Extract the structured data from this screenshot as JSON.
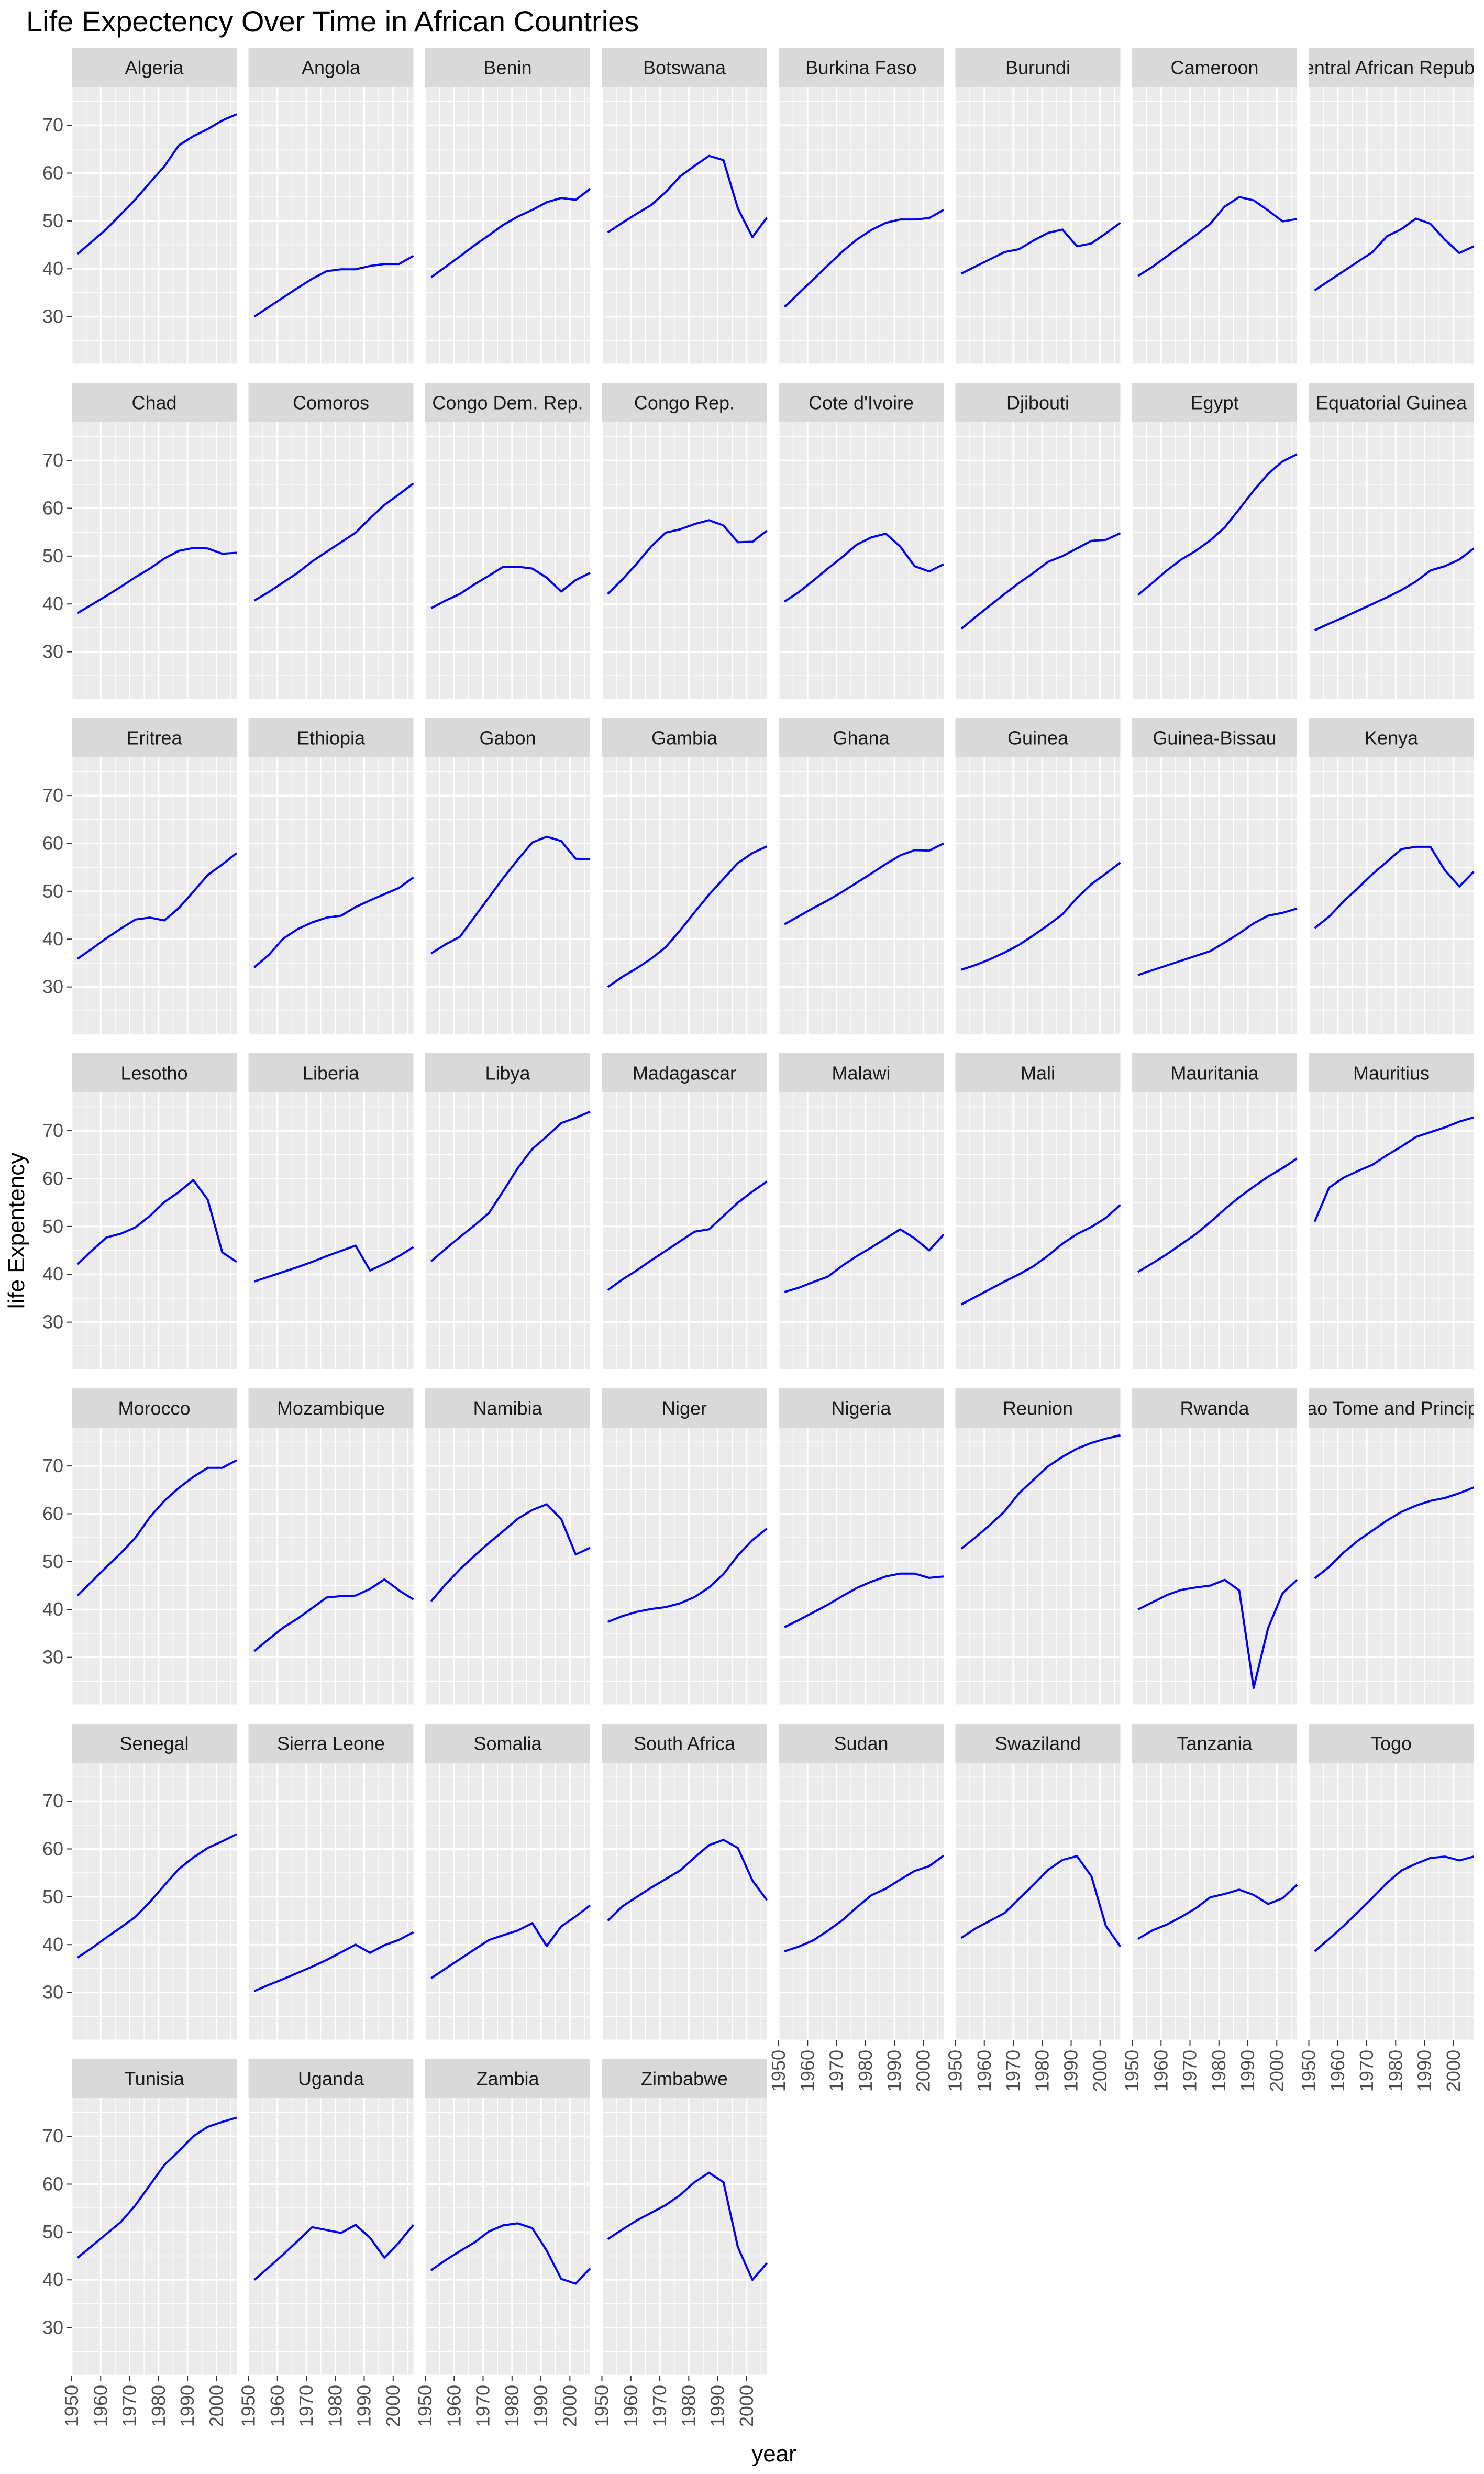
{
  "chart_data": {
    "type": "line",
    "title": "Life Expectency Over Time in African Countries",
    "xlabel": "year",
    "ylabel": "life Expentency",
    "x": [
      1952,
      1957,
      1962,
      1967,
      1972,
      1977,
      1982,
      1987,
      1992,
      1997,
      2002,
      2007
    ],
    "xlim": [
      1950,
      2007
    ],
    "ylim": [
      20,
      78
    ],
    "x_ticks": [
      "1950",
      "1960",
      "1970",
      "1980",
      "1990",
      "2000"
    ],
    "y_ticks": [
      "30",
      "40",
      "50",
      "60",
      "70"
    ],
    "line_color": "#0000ff",
    "panel_bg": "#ebebeb",
    "strip_bg": "#d9d9d9",
    "grid": true,
    "facet_columns": 8,
    "facets": [
      {
        "name": "Algeria",
        "values": [
          43.1,
          45.7,
          48.3,
          51.4,
          54.5,
          58.0,
          61.4,
          65.8,
          67.7,
          69.2,
          71.0,
          72.3
        ]
      },
      {
        "name": "Angola",
        "values": [
          30.0,
          32.0,
          34.0,
          36.0,
          37.9,
          39.5,
          39.9,
          39.9,
          40.6,
          41.0,
          41.0,
          42.7
        ]
      },
      {
        "name": "Benin",
        "values": [
          38.2,
          40.4,
          42.6,
          44.9,
          47.0,
          49.2,
          50.9,
          52.3,
          53.9,
          54.8,
          54.4,
          56.7
        ]
      },
      {
        "name": "Botswana",
        "values": [
          47.6,
          49.6,
          51.5,
          53.3,
          56.0,
          59.3,
          61.5,
          63.6,
          62.7,
          52.6,
          46.6,
          50.7
        ]
      },
      {
        "name": "Burkina Faso",
        "values": [
          32.0,
          34.9,
          37.8,
          40.7,
          43.6,
          46.1,
          48.1,
          49.6,
          50.3,
          50.3,
          50.6,
          52.3
        ]
      },
      {
        "name": "Burundi",
        "values": [
          39.0,
          40.5,
          42.0,
          43.5,
          44.1,
          45.9,
          47.5,
          48.2,
          44.7,
          45.3,
          47.4,
          49.6
        ]
      },
      {
        "name": "Cameroon",
        "values": [
          38.5,
          40.4,
          42.6,
          44.8,
          47.0,
          49.4,
          53.0,
          55.0,
          54.3,
          52.2,
          49.9,
          50.4
        ]
      },
      {
        "name": "Central African Republic",
        "values": [
          35.5,
          37.5,
          39.5,
          41.5,
          43.5,
          46.8,
          48.3,
          50.5,
          49.4,
          46.1,
          43.3,
          44.7
        ]
      },
      {
        "name": "Chad",
        "values": [
          38.1,
          39.9,
          41.7,
          43.6,
          45.6,
          47.4,
          49.5,
          51.1,
          51.7,
          51.6,
          50.5,
          50.7
        ]
      },
      {
        "name": "Comoros",
        "values": [
          40.7,
          42.5,
          44.5,
          46.5,
          48.9,
          50.9,
          52.9,
          54.9,
          57.9,
          60.7,
          62.9,
          65.2
        ]
      },
      {
        "name": "Congo Dem. Rep.",
        "values": [
          39.1,
          40.7,
          42.1,
          44.1,
          45.9,
          47.8,
          47.8,
          47.4,
          45.5,
          42.6,
          45.0,
          46.5
        ]
      },
      {
        "name": "Congo Rep.",
        "values": [
          42.1,
          45.1,
          48.4,
          52.0,
          54.9,
          55.6,
          56.7,
          57.5,
          56.4,
          52.9,
          53.0,
          55.3
        ]
      },
      {
        "name": "Cote d'Ivoire",
        "values": [
          40.5,
          42.5,
          44.9,
          47.4,
          49.8,
          52.4,
          53.9,
          54.7,
          52.0,
          47.9,
          46.8,
          48.3
        ]
      },
      {
        "name": "Djibouti",
        "values": [
          34.8,
          37.3,
          39.7,
          42.1,
          44.4,
          46.5,
          48.8,
          50.0,
          51.6,
          53.2,
          53.4,
          54.8
        ]
      },
      {
        "name": "Egypt",
        "values": [
          41.9,
          44.4,
          47.0,
          49.3,
          51.1,
          53.3,
          56.0,
          59.8,
          63.7,
          67.2,
          69.8,
          71.3
        ]
      },
      {
        "name": "Equatorial Guinea",
        "values": [
          34.5,
          35.9,
          37.2,
          38.6,
          40.0,
          41.4,
          42.9,
          44.7,
          47.0,
          47.9,
          49.3,
          51.6
        ]
      },
      {
        "name": "Eritrea",
        "values": [
          35.9,
          38.0,
          40.2,
          42.2,
          44.1,
          44.5,
          43.9,
          46.5,
          49.9,
          53.4,
          55.6,
          58.0
        ]
      },
      {
        "name": "Ethiopia",
        "values": [
          34.1,
          36.7,
          40.1,
          42.1,
          43.5,
          44.5,
          44.9,
          46.7,
          48.1,
          49.4,
          50.7,
          52.9
        ]
      },
      {
        "name": "Gabon",
        "values": [
          37.0,
          38.9,
          40.5,
          44.6,
          48.7,
          52.8,
          56.6,
          60.2,
          61.4,
          60.5,
          56.8,
          56.7
        ]
      },
      {
        "name": "Gambia",
        "values": [
          30.0,
          32.1,
          33.9,
          35.9,
          38.3,
          41.8,
          45.6,
          49.3,
          52.6,
          55.9,
          58.0,
          59.4
        ]
      },
      {
        "name": "Ghana",
        "values": [
          43.1,
          44.8,
          46.5,
          48.1,
          49.9,
          51.8,
          53.7,
          55.7,
          57.5,
          58.6,
          58.5,
          60.0
        ]
      },
      {
        "name": "Guinea",
        "values": [
          33.6,
          34.6,
          35.8,
          37.2,
          38.8,
          40.8,
          42.9,
          45.2,
          48.6,
          51.5,
          53.7,
          56.0
        ]
      },
      {
        "name": "Guinea-Bissau",
        "values": [
          32.5,
          33.5,
          34.5,
          35.5,
          36.5,
          37.5,
          39.3,
          41.2,
          43.3,
          44.9,
          45.5,
          46.4
        ]
      },
      {
        "name": "Kenya",
        "values": [
          42.3,
          44.7,
          47.9,
          50.7,
          53.6,
          56.2,
          58.8,
          59.3,
          59.3,
          54.4,
          50.99,
          54.1
        ]
      },
      {
        "name": "Lesotho",
        "values": [
          42.1,
          45.0,
          47.7,
          48.5,
          49.8,
          52.2,
          55.1,
          57.2,
          59.7,
          55.6,
          44.6,
          42.6
        ]
      },
      {
        "name": "Liberia",
        "values": [
          38.5,
          39.5,
          40.5,
          41.5,
          42.6,
          43.8,
          44.9,
          46.0,
          40.8,
          42.2,
          43.8,
          45.7
        ]
      },
      {
        "name": "Libya",
        "values": [
          42.7,
          45.3,
          47.8,
          50.2,
          52.8,
          57.4,
          62.2,
          66.2,
          68.8,
          71.6,
          72.7,
          74.0
        ]
      },
      {
        "name": "Madagascar",
        "values": [
          36.7,
          38.9,
          40.8,
          42.9,
          44.9,
          46.9,
          48.9,
          49.4,
          52.2,
          54.98,
          57.3,
          59.4
        ]
      },
      {
        "name": "Malawi",
        "values": [
          36.3,
          37.2,
          38.4,
          39.5,
          41.8,
          43.8,
          45.6,
          47.5,
          49.4,
          47.5,
          45.0,
          48.3
        ]
      },
      {
        "name": "Mali",
        "values": [
          33.7,
          35.3,
          36.9,
          38.5,
          40.0,
          41.7,
          43.9,
          46.4,
          48.4,
          49.9,
          51.8,
          54.5
        ]
      },
      {
        "name": "Mauritania",
        "values": [
          40.5,
          42.3,
          44.2,
          46.3,
          48.4,
          50.9,
          53.6,
          56.1,
          58.3,
          60.4,
          62.2,
          64.2
        ]
      },
      {
        "name": "Mauritius",
        "values": [
          51.0,
          58.1,
          60.2,
          61.6,
          62.9,
          64.9,
          66.7,
          68.7,
          69.7,
          70.7,
          71.9,
          72.8
        ]
      },
      {
        "name": "Morocco",
        "values": [
          42.9,
          45.9,
          48.9,
          51.8,
          55.0,
          59.3,
          62.7,
          65.4,
          67.7,
          69.6,
          69.6,
          71.2
        ]
      },
      {
        "name": "Mozambique",
        "values": [
          31.3,
          33.8,
          36.2,
          38.1,
          40.3,
          42.5,
          42.8,
          42.9,
          44.3,
          46.3,
          44.0,
          42.1
        ]
      },
      {
        "name": "Namibia",
        "values": [
          41.7,
          45.2,
          48.4,
          51.2,
          53.9,
          56.4,
          58.97,
          60.8,
          61.99,
          58.9,
          51.5,
          52.9
        ]
      },
      {
        "name": "Niger",
        "values": [
          37.4,
          38.6,
          39.5,
          40.1,
          40.5,
          41.3,
          42.6,
          44.6,
          47.4,
          51.3,
          54.5,
          56.9
        ]
      },
      {
        "name": "Nigeria",
        "values": [
          36.3,
          37.8,
          39.4,
          41.0,
          42.8,
          44.5,
          45.8,
          46.9,
          47.5,
          47.5,
          46.6,
          46.9
        ]
      },
      {
        "name": "Reunion",
        "values": [
          52.7,
          55.1,
          57.7,
          60.5,
          64.3,
          67.1,
          69.9,
          71.9,
          73.6,
          74.8,
          75.7,
          76.4
        ]
      },
      {
        "name": "Rwanda",
        "values": [
          40.0,
          41.5,
          43.0,
          44.1,
          44.6,
          45.0,
          46.2,
          44.0,
          23.6,
          36.1,
          43.4,
          46.2
        ]
      },
      {
        "name": "Sao Tome and Principe",
        "values": [
          46.5,
          48.9,
          51.9,
          54.4,
          56.5,
          58.6,
          60.4,
          61.7,
          62.7,
          63.3,
          64.3,
          65.5
        ]
      },
      {
        "name": "Senegal",
        "values": [
          37.3,
          39.3,
          41.5,
          43.6,
          45.8,
          48.9,
          52.4,
          55.8,
          58.2,
          60.2,
          61.6,
          63.1
        ]
      },
      {
        "name": "Sierra Leone",
        "values": [
          30.3,
          31.6,
          32.8,
          34.1,
          35.4,
          36.8,
          38.4,
          40.0,
          38.3,
          39.9,
          41.0,
          42.6
        ]
      },
      {
        "name": "Somalia",
        "values": [
          32.98,
          34.98,
          36.98,
          38.98,
          40.97,
          41.97,
          42.96,
          44.5,
          39.7,
          43.8,
          45.9,
          48.2
        ]
      },
      {
        "name": "South Africa",
        "values": [
          45.0,
          47.98,
          49.95,
          51.9,
          53.7,
          55.5,
          58.2,
          60.8,
          61.9,
          60.2,
          53.4,
          49.3
        ]
      },
      {
        "name": "Sudan",
        "values": [
          38.6,
          39.6,
          40.9,
          42.9,
          45.1,
          47.8,
          50.3,
          51.7,
          53.6,
          55.4,
          56.4,
          58.6
        ]
      },
      {
        "name": "Swaziland",
        "values": [
          41.4,
          43.4,
          44.99,
          46.6,
          49.6,
          52.5,
          55.6,
          57.7,
          58.5,
          54.3,
          43.9,
          39.6
        ]
      },
      {
        "name": "Tanzania",
        "values": [
          41.2,
          42.97,
          44.2,
          45.8,
          47.6,
          49.9,
          50.6,
          51.5,
          50.4,
          48.5,
          49.7,
          52.5
        ]
      },
      {
        "name": "Togo",
        "values": [
          38.6,
          41.2,
          43.9,
          46.8,
          49.8,
          52.9,
          55.5,
          56.9,
          58.1,
          58.4,
          57.6,
          58.4
        ]
      },
      {
        "name": "Tunisia",
        "values": [
          44.6,
          47.1,
          49.6,
          52.1,
          55.6,
          59.8,
          64.0,
          66.9,
          70.0,
          71.97,
          73.0,
          73.9
        ]
      },
      {
        "name": "Uganda",
        "values": [
          39.98,
          42.6,
          45.3,
          48.1,
          51.0,
          50.4,
          49.8,
          51.5,
          48.8,
          44.6,
          47.8,
          51.5
        ]
      },
      {
        "name": "Zambia",
        "values": [
          42.0,
          44.1,
          46.0,
          47.8,
          50.1,
          51.4,
          51.8,
          50.8,
          46.1,
          40.2,
          39.2,
          42.4
        ]
      },
      {
        "name": "Zimbabwe",
        "values": [
          48.5,
          50.5,
          52.4,
          54.0,
          55.6,
          57.7,
          60.4,
          62.4,
          60.4,
          46.8,
          39.99,
          43.5
        ]
      }
    ]
  }
}
